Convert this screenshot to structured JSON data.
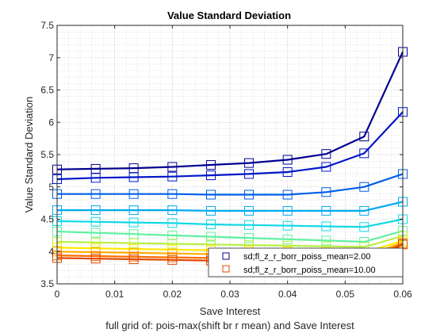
{
  "chart_data": {
    "type": "line",
    "title": "Value Standard Deviation",
    "xlabel": "Save Interest",
    "ylabel": "Value Standard Deviation",
    "caption": "full grid of: pois-max(shift br r mean) and Save Interest",
    "xlim": [
      0,
      0.06
    ],
    "ylim": [
      3.5,
      7.5
    ],
    "xticks": [
      "0",
      "0.01",
      "0.02",
      "0.03",
      "0.04",
      "0.05",
      "0.06"
    ],
    "yticks": [
      "3.5",
      "4",
      "4.5",
      "5",
      "5.5",
      "6",
      "6.5",
      "7",
      "7.5"
    ],
    "grid": "minor dotted",
    "marker": "square",
    "x": [
      0,
      0.0067,
      0.0133,
      0.02,
      0.0267,
      0.0333,
      0.04,
      0.0467,
      0.0533,
      0.06
    ],
    "series": [
      {
        "name": "sd;fl_z_r_borr_poiss_mean=2.00",
        "color": "#00008f",
        "values": [
          5.27,
          5.28,
          5.29,
          5.31,
          5.34,
          5.37,
          5.42,
          5.51,
          5.78,
          7.09
        ]
      },
      {
        "name": "",
        "color": "#0015c8",
        "values": [
          5.12,
          5.14,
          5.15,
          5.16,
          5.18,
          5.2,
          5.23,
          5.31,
          5.52,
          6.16
        ]
      },
      {
        "name": "",
        "color": "#005fe8",
        "values": [
          4.89,
          4.89,
          4.89,
          4.89,
          4.88,
          4.88,
          4.88,
          4.92,
          5.0,
          5.2
        ]
      },
      {
        "name": "",
        "color": "#00aaf0",
        "values": [
          4.64,
          4.64,
          4.64,
          4.64,
          4.63,
          4.63,
          4.63,
          4.63,
          4.63,
          4.77
        ]
      },
      {
        "name": "",
        "color": "#13d8e6",
        "values": [
          4.47,
          4.46,
          4.45,
          4.44,
          4.42,
          4.41,
          4.4,
          4.39,
          4.38,
          4.5
        ]
      },
      {
        "name": "",
        "color": "#60f0a0",
        "values": [
          4.31,
          4.29,
          4.27,
          4.25,
          4.23,
          4.21,
          4.19,
          4.17,
          4.15,
          4.32
        ]
      },
      {
        "name": "",
        "color": "#b8f040",
        "values": [
          4.15,
          4.14,
          4.13,
          4.12,
          4.11,
          4.1,
          4.09,
          4.08,
          4.07,
          4.24
        ]
      },
      {
        "name": "",
        "color": "#ffea00",
        "values": [
          4.06,
          4.05,
          4.04,
          4.03,
          4.02,
          4.01,
          4.0,
          3.99,
          3.98,
          4.17
        ]
      },
      {
        "name": "",
        "color": "#ffae00",
        "values": [
          4.0,
          3.99,
          3.98,
          3.97,
          3.96,
          3.95,
          3.94,
          3.93,
          3.92,
          4.14
        ]
      },
      {
        "name": "",
        "color": "#ff6a00",
        "values": [
          3.94,
          3.93,
          3.92,
          3.91,
          3.9,
          3.89,
          3.88,
          3.87,
          3.87,
          4.12
        ]
      },
      {
        "name": "sd;fl_z_r_borr_poiss_mean=10.00",
        "color": "#e04800",
        "values": [
          3.9,
          3.89,
          3.88,
          3.87,
          3.86,
          3.85,
          3.84,
          3.83,
          3.82,
          4.11
        ]
      }
    ],
    "legend": {
      "placement": "bottom-right",
      "entries": [
        "sd;fl_z_r_borr_poiss_mean=2.00",
        "sd;fl_z_r_borr_poiss_mean=10.00"
      ]
    }
  }
}
